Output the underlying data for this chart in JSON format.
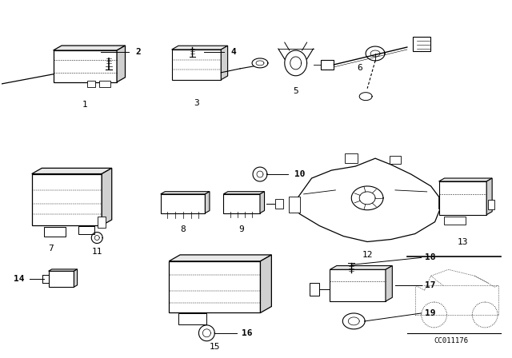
{
  "bg_color": "#ffffff",
  "line_color": "#000000",
  "diagram_code": "CC011176",
  "figsize": [
    6.4,
    4.48
  ],
  "dpi": 100
}
